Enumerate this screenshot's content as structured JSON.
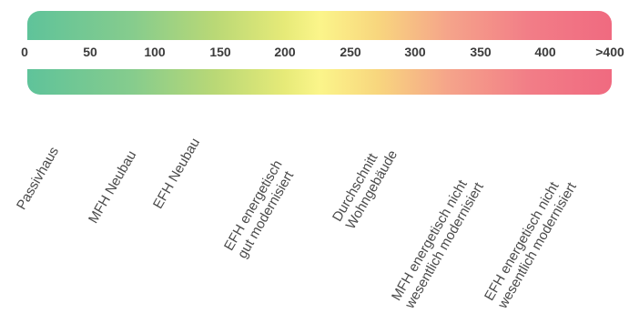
{
  "scale": {
    "ticks": [
      "0",
      "50",
      "100",
      "150",
      "200",
      "250",
      "300",
      "350",
      "400",
      ">400"
    ],
    "gradient_colors": [
      "#5fc39a",
      "#b9d876",
      "#fbf58a",
      "#f5a48a",
      "#f06a80"
    ]
  },
  "categories": [
    {
      "lines": [
        "Passivhaus"
      ]
    },
    {
      "lines": [
        "MFH Neubau"
      ]
    },
    {
      "lines": [
        "EFH Neubau"
      ]
    },
    {
      "lines": [
        "EFH energetisch",
        "gut modernisiert"
      ]
    },
    {
      "lines": [
        "Durchschnitt",
        "Wohngebäude"
      ]
    },
    {
      "lines": [
        "MFH energetisch nicht",
        "wesentlich modernisiert"
      ]
    },
    {
      "lines": [
        "EFH energetisch nicht",
        "wesentlich modernisiert"
      ]
    }
  ]
}
